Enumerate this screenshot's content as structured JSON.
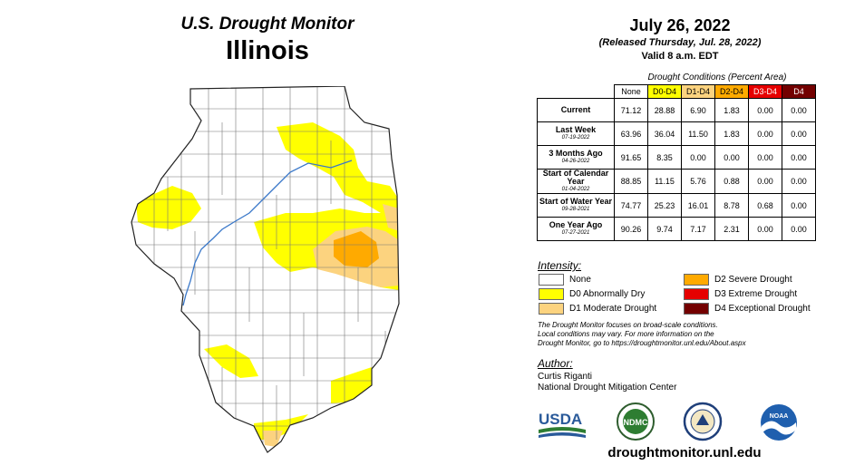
{
  "header": {
    "title_line1": "U.S. Drought Monitor",
    "title_line2": "Illinois",
    "date": "July 26, 2022",
    "released": "(Released Thursday, Jul. 28, 2022)",
    "valid": "Valid 8 a.m. EDT"
  },
  "table": {
    "caption": "Drought Conditions (Percent Area)",
    "columns": [
      "None",
      "D0-D4",
      "D1-D4",
      "D2-D4",
      "D3-D4",
      "D4"
    ],
    "rows": [
      {
        "label": "Current",
        "date": "",
        "values": [
          "71.12",
          "28.88",
          "6.90",
          "1.83",
          "0.00",
          "0.00"
        ]
      },
      {
        "label": "Last Week",
        "date": "07-19-2022",
        "values": [
          "63.96",
          "36.04",
          "11.50",
          "1.83",
          "0.00",
          "0.00"
        ]
      },
      {
        "label": "3 Months Ago",
        "date": "04-26-2022",
        "values": [
          "91.65",
          "8.35",
          "0.00",
          "0.00",
          "0.00",
          "0.00"
        ]
      },
      {
        "label": "Start of Calendar Year",
        "date": "01-04-2022",
        "values": [
          "88.85",
          "11.15",
          "5.76",
          "0.88",
          "0.00",
          "0.00"
        ]
      },
      {
        "label": "Start of Water Year",
        "date": "09-28-2021",
        "values": [
          "74.77",
          "25.23",
          "16.01",
          "8.78",
          "0.68",
          "0.00"
        ]
      },
      {
        "label": "One Year Ago",
        "date": "07-27-2021",
        "values": [
          "90.26",
          "9.74",
          "7.17",
          "2.31",
          "0.00",
          "0.00"
        ]
      }
    ]
  },
  "legend": {
    "title": "Intensity:",
    "items": [
      {
        "label": "None",
        "color": "#ffffff"
      },
      {
        "label": "D0 Abnormally Dry",
        "color": "#ffff00"
      },
      {
        "label": "D1 Moderate Drought",
        "color": "#fcd37f"
      },
      {
        "label": "D2 Severe Drought",
        "color": "#ffaa00"
      },
      {
        "label": "D3 Extreme Drought",
        "color": "#e60000"
      },
      {
        "label": "D4 Exceptional Drought",
        "color": "#730000"
      }
    ]
  },
  "note": {
    "line1": "The Drought Monitor focuses on broad-scale conditions.",
    "line2": "Local conditions may vary. For more information on the",
    "line3": "Drought Monitor, go to https://droughtmonitor.unl.edu/About.aspx"
  },
  "author": {
    "title": "Author:",
    "name": "Curtis Riganti",
    "org": "National Drought Mitigation Center"
  },
  "logos": {
    "usda": "USDA",
    "ndmc": "NDMC",
    "noaa": "NOAA"
  },
  "footer": {
    "url": "droughtmonitor.unl.edu"
  }
}
